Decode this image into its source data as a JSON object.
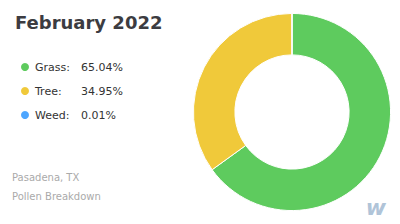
{
  "chart_data": {
    "type": "pie",
    "title": "February 2022",
    "categories": [
      "Grass:",
      "Tree:",
      "Weed:"
    ],
    "values": [
      65.04,
      34.95,
      0.01
    ],
    "value_labels": [
      "65.04%",
      "34.95%",
      "0.01%"
    ],
    "colors": [
      "#5ecb5e",
      "#f0c93a",
      "#4da6ff"
    ],
    "legend": "left",
    "annotations": [
      "Pasadena, TX",
      "Pollen Breakdown",
      "w"
    ]
  }
}
